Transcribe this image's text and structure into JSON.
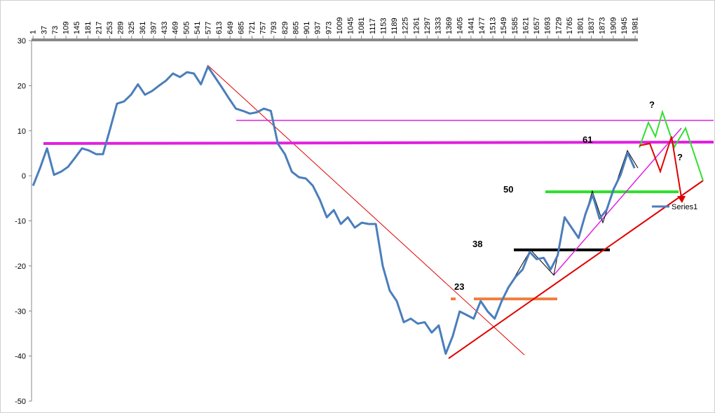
{
  "chart_data": {
    "type": "line",
    "x": [
      1,
      24,
      47,
      70,
      93,
      116,
      139,
      162,
      185,
      208,
      231,
      254,
      277,
      300,
      323,
      346,
      369,
      392,
      415,
      438,
      461,
      484,
      507,
      530,
      553,
      576,
      599,
      622,
      645,
      668,
      691,
      714,
      737,
      760,
      783,
      806,
      829,
      852,
      875,
      898,
      921,
      944,
      967,
      990,
      1013,
      1036,
      1059,
      1082,
      1105,
      1128,
      1151,
      1174,
      1197,
      1220,
      1243,
      1266,
      1289,
      1312,
      1335,
      1358,
      1381,
      1404,
      1427,
      1450,
      1473,
      1496,
      1519,
      1542,
      1565,
      1588,
      1611,
      1634,
      1657,
      1680,
      1703,
      1726,
      1749,
      1772,
      1795,
      1818,
      1841,
      1864,
      1887,
      1910,
      1933,
      1956,
      1979
    ],
    "series": [
      {
        "name": "Series1",
        "color": "#4a7ebb",
        "values": [
          -2.2,
          1.7,
          6.1,
          0.2,
          0.9,
          2.0,
          4.0,
          6.1,
          5.6,
          4.8,
          4.8,
          10.3,
          16.0,
          16.5,
          18.0,
          20.3,
          18.0,
          18.8,
          20.0,
          21.1,
          22.7,
          21.9,
          23.0,
          22.7,
          20.3,
          24.2,
          21.9,
          19.6,
          17.2,
          14.9,
          14.4,
          13.8,
          14.1,
          14.9,
          14.4,
          7.1,
          4.8,
          0.9,
          -0.3,
          -0.6,
          -2.2,
          -5.3,
          -9.2,
          -7.6,
          -10.7,
          -9.2,
          -11.5,
          -10.4,
          -10.7,
          -10.7,
          -20.0,
          -25.5,
          -27.8,
          -32.5,
          -31.7,
          -32.8,
          -32.5,
          -34.8,
          -33.2,
          -39.5,
          -35.6,
          -30.1,
          -30.9,
          -31.7,
          -27.8,
          -30.1,
          -31.7,
          -27.8,
          -24.7,
          -22.4,
          -20.8,
          -16.9,
          -18.5,
          -18.2,
          -20.8,
          -17.7,
          -9.2,
          -11.5,
          -13.8,
          -8.4,
          -4.2,
          -9.5,
          -7.6,
          -3.0,
          0.2,
          5.1,
          1.7
        ]
      }
    ],
    "xlim": [
      -4,
      1990
    ],
    "xticks": [
      1,
      37,
      73,
      109,
      145,
      181,
      217,
      253,
      289,
      325,
      361,
      397,
      433,
      469,
      505,
      541,
      577,
      613,
      649,
      685,
      721,
      757,
      793,
      829,
      865,
      901,
      937,
      973,
      1009,
      1045,
      1081,
      1117,
      1153,
      1189,
      1225,
      1261,
      1297,
      1333,
      1369,
      1405,
      1441,
      1477,
      1513,
      1549,
      1585,
      1621,
      1657,
      1693,
      1729,
      1765,
      1801,
      1837,
      1873,
      1909,
      1945,
      1981
    ],
    "ylim": [
      -50,
      30
    ],
    "yticks": [
      -50,
      -40,
      -30,
      -20,
      -10,
      0,
      10,
      20,
      30
    ],
    "legend": "right",
    "annotations": [
      {
        "text": "23",
        "color": "#e020e0"
      },
      {
        "text": "38",
        "color": "#e020e0"
      },
      {
        "text": "50",
        "color": "#e020e0"
      },
      {
        "text": "61",
        "color": "#e020e0"
      },
      {
        "text": "?",
        "color": "#e00000"
      },
      {
        "text": "?",
        "color": "#e00000"
      }
    ]
  }
}
